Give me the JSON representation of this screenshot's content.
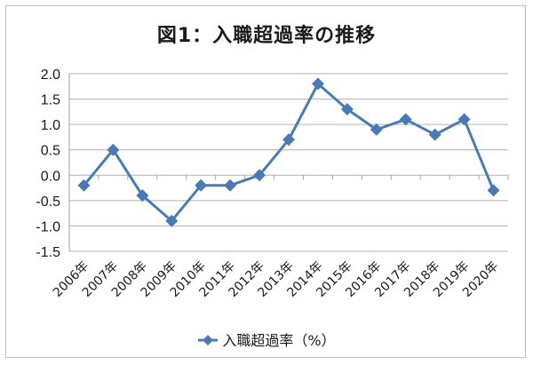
{
  "title": "図1：入職超過率の推移",
  "legend": {
    "label": "入職超過率（%）",
    "marker": "diamond",
    "color": "#4a7ab5"
  },
  "chart_data": {
    "type": "line",
    "title": "図1：入職超過率の推移",
    "xlabel": "",
    "ylabel": "",
    "categories": [
      "2006年",
      "2007年",
      "2008年",
      "2009年",
      "2010年",
      "2011年",
      "2012年",
      "2013年",
      "2014年",
      "2015年",
      "2016年",
      "2017年",
      "2018年",
      "2019年",
      "2020年"
    ],
    "series": [
      {
        "name": "入職超過率（%）",
        "values": [
          -0.2,
          0.5,
          -0.4,
          -0.9,
          -0.2,
          -0.2,
          0.0,
          0.7,
          1.8,
          1.3,
          0.9,
          1.1,
          0.8,
          1.1,
          -0.3
        ],
        "color": "#4a7ab5",
        "marker": "diamond"
      }
    ],
    "ylim": [
      -1.5,
      2.0
    ],
    "yticks": [
      "2.0",
      "1.5",
      "1.0",
      "0.5",
      "0.0",
      "-0.5",
      "-1.0",
      "-1.5"
    ],
    "grid": true,
    "legend_position": "bottom"
  }
}
